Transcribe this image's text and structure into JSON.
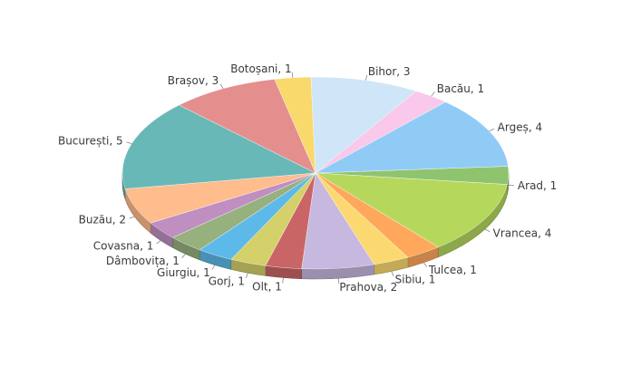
{
  "chart_data": {
    "type": "pie",
    "style": "3d",
    "title": "",
    "legend": "none",
    "slices": [
      {
        "label": "Arad, 1",
        "name": "Arad",
        "value": 1,
        "color": "#8fc46e"
      },
      {
        "label": "Vrancea, 4",
        "name": "Vrancea",
        "value": 4,
        "color": "#b5d85c"
      },
      {
        "label": "Tulcea, 1",
        "name": "Tulcea",
        "value": 1,
        "color": "#ffa85c"
      },
      {
        "label": "Sibiu, 1",
        "name": "Sibiu",
        "value": 1,
        "color": "#fbd970"
      },
      {
        "label": "Prahova, 2",
        "name": "Prahova",
        "value": 2,
        "color": "#c6b8de"
      },
      {
        "label": "Olt, 1",
        "name": "Olt",
        "value": 1,
        "color": "#c96565"
      },
      {
        "label": "Gorj, 1",
        "name": "Gorj",
        "value": 1,
        "color": "#d4d06a"
      },
      {
        "label": "Giurgiu, 1",
        "name": "Giurgiu",
        "value": 1,
        "color": "#5db9e8"
      },
      {
        "label": "Dâmbovița, 1",
        "name": "Dâmbovița",
        "value": 1,
        "color": "#96b07e"
      },
      {
        "label": "Covasna, 1",
        "name": "Covasna",
        "value": 1,
        "color": "#be8fc0"
      },
      {
        "label": "Buzău, 2",
        "name": "Buzău",
        "value": 2,
        "color": "#ffbc8c"
      },
      {
        "label": "București, 5",
        "name": "București",
        "value": 5,
        "color": "#68b8b8"
      },
      {
        "label": "Brașov, 3",
        "name": "Brașov",
        "value": 3,
        "color": "#e48e8e"
      },
      {
        "label": "Botoșani, 1",
        "name": "Botoșani",
        "value": 1,
        "color": "#f9d86c"
      },
      {
        "label": "Bihor, 3",
        "name": "Bihor",
        "value": 3,
        "color": "#cfe5f8"
      },
      {
        "label": "Bacău, 1",
        "name": "Bacău",
        "value": 1,
        "color": "#f9c8ea"
      },
      {
        "label": "Argeș, 4",
        "name": "Argeș",
        "value": 4,
        "color": "#90cbf6"
      }
    ]
  }
}
